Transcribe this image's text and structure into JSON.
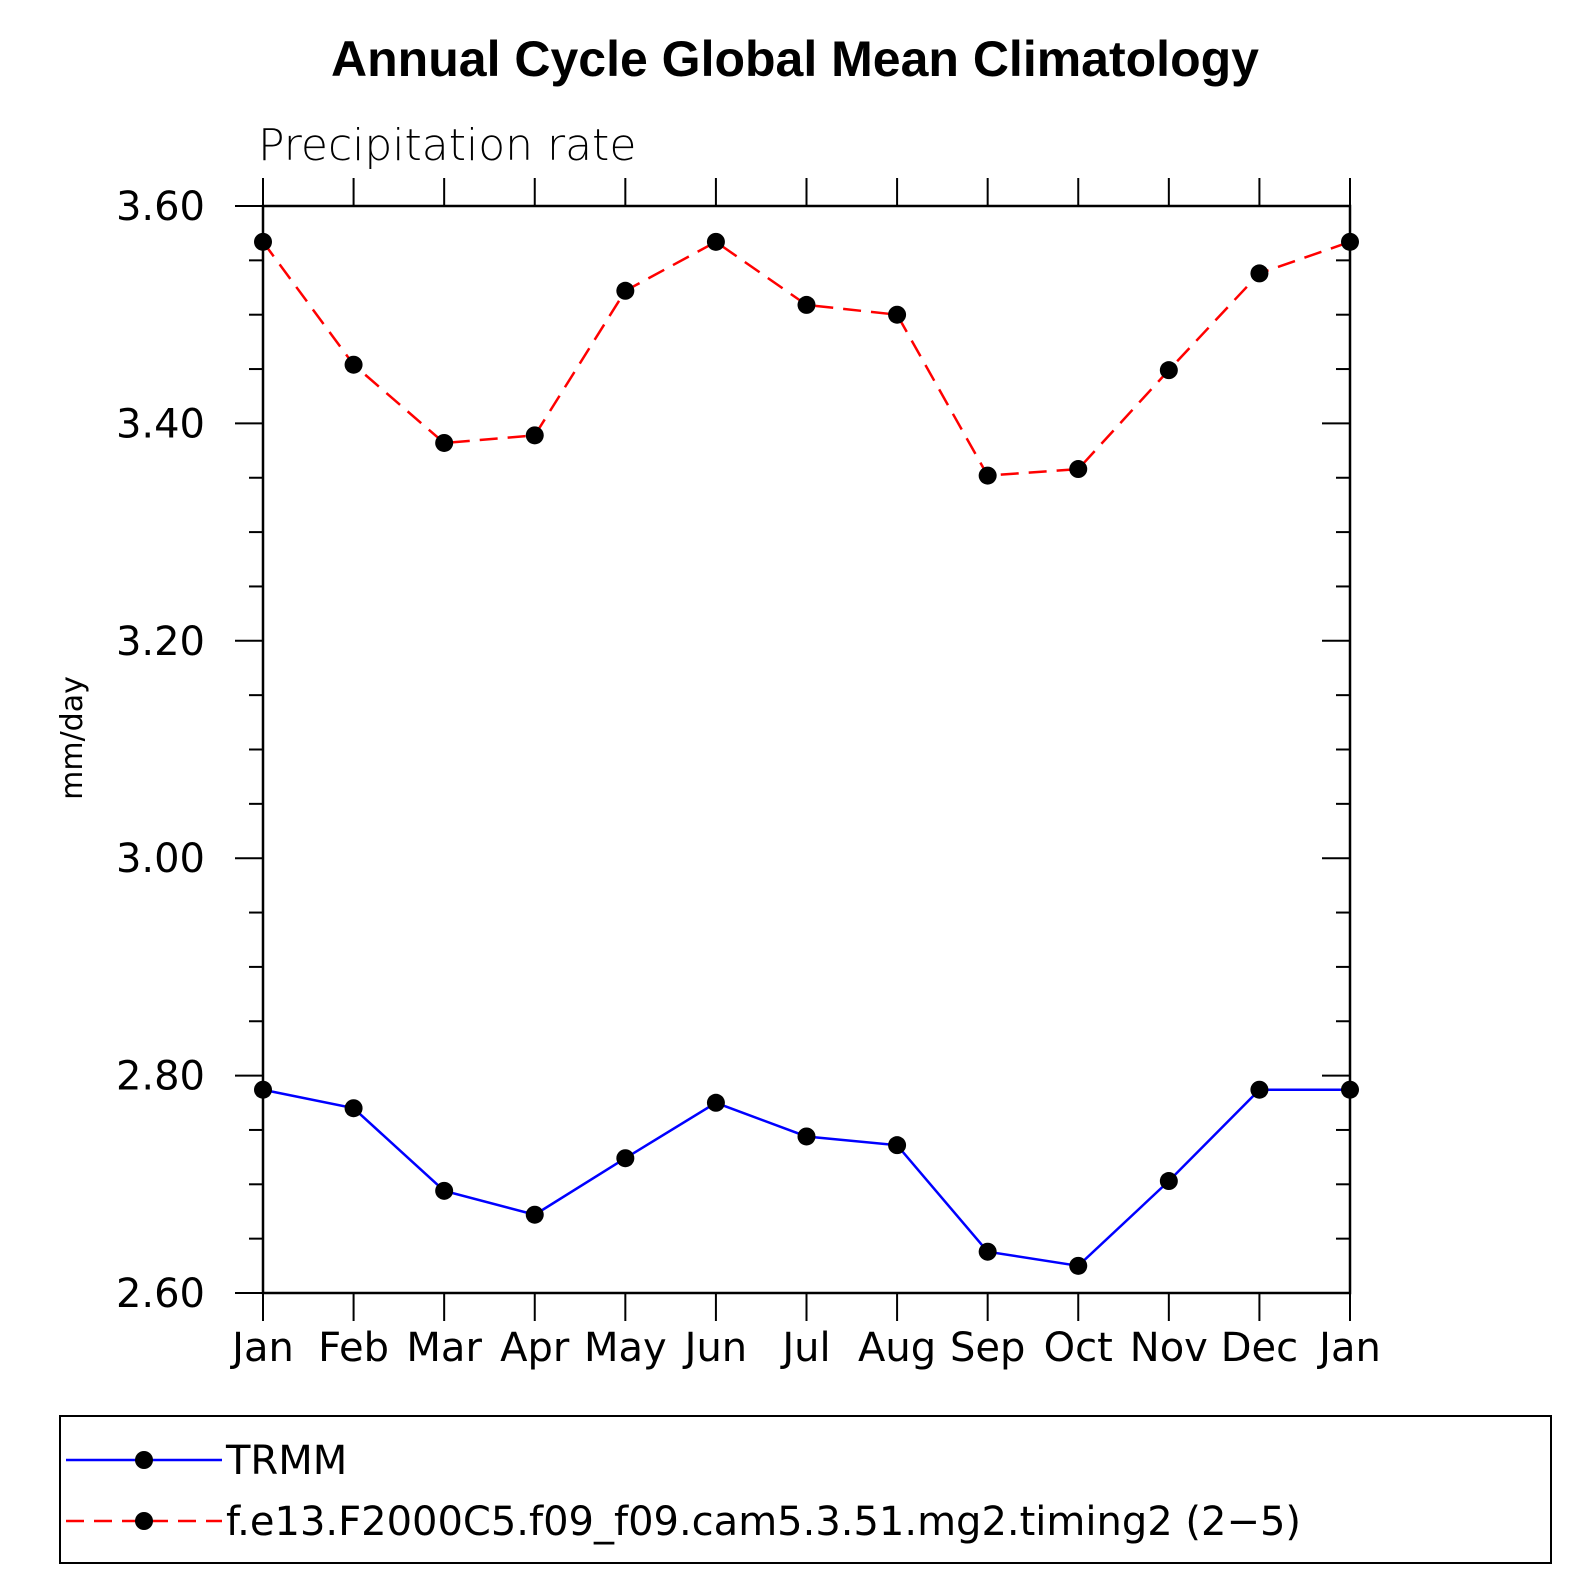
{
  "chart_data": {
    "type": "line",
    "title": "Annual Cycle Global Mean Climatology",
    "subtitle": "Precipitation rate",
    "xlabel": "",
    "ylabel": "mm/day",
    "categories": [
      "Jan",
      "Feb",
      "Mar",
      "Apr",
      "May",
      "Jun",
      "Jul",
      "Aug",
      "Sep",
      "Oct",
      "Nov",
      "Dec",
      "Jan"
    ],
    "ylim": [
      2.6,
      3.6
    ],
    "yticks": [
      "3.60",
      "3.40",
      "3.20",
      "3.00",
      "2.80",
      "2.60"
    ],
    "ytick_values": [
      3.6,
      3.4,
      3.2,
      3.0,
      2.8,
      2.6
    ],
    "grid": false,
    "legend_position": "bottom",
    "series": [
      {
        "name": "TRMM",
        "color": "#0000ff",
        "line_style": "solid",
        "marker": "circle",
        "values": [
          2.787,
          2.77,
          2.694,
          2.672,
          2.724,
          2.775,
          2.744,
          2.736,
          2.638,
          2.625,
          2.703,
          2.787,
          2.787
        ]
      },
      {
        "name": "f.e13.F2000C5.f09_f09.cam5.3.51.mg2.timing2 (2−5)",
        "color": "#ff0000",
        "line_style": "dashed",
        "marker": "circle",
        "values": [
          3.567,
          3.454,
          3.382,
          3.389,
          3.522,
          3.567,
          3.509,
          3.5,
          3.352,
          3.358,
          3.449,
          3.538,
          3.567
        ]
      }
    ]
  }
}
